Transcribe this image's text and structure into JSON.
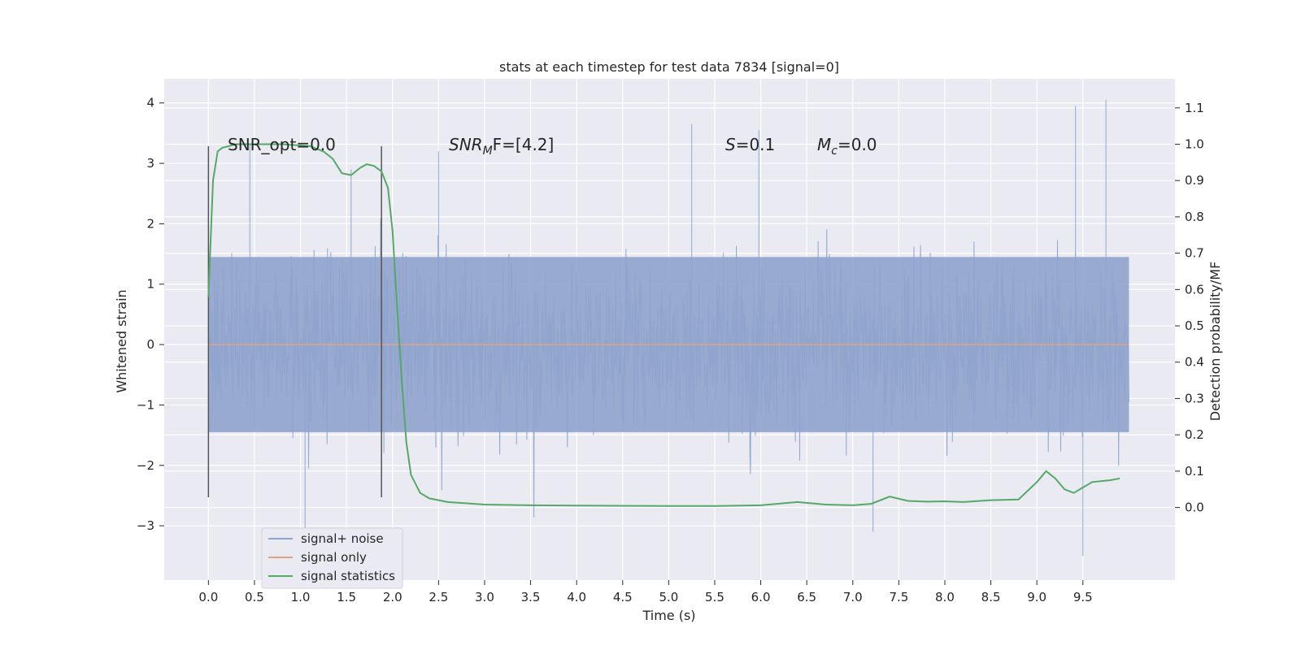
{
  "chart_data": {
    "type": "line",
    "title": "stats at each timestep for test data 7834 [signal=0]",
    "xlabel": "Time (s)",
    "ylabel": "Whitened strain",
    "ylabel_right": "Detection probability/MF",
    "xlim": [
      -0.48,
      10.5
    ],
    "ylim": [
      -3.9,
      4.4
    ],
    "ylim_right": [
      -0.2,
      1.18
    ],
    "xticks": [
      "0.0",
      "0.5",
      "1.0",
      "1.5",
      "2.0",
      "2.5",
      "3.0",
      "3.5",
      "4.0",
      "4.5",
      "5.0",
      "5.5",
      "6.0",
      "6.5",
      "7.0",
      "7.5",
      "8.0",
      "8.5",
      "9.0",
      "9.5"
    ],
    "yticks": [
      "−3",
      "−2",
      "−1",
      "0",
      "1",
      "2",
      "3",
      "4"
    ],
    "yticks_right": [
      "0.0",
      "0.1",
      "0.2",
      "0.3",
      "0.4",
      "0.5",
      "0.6",
      "0.7",
      "0.8",
      "0.9",
      "1.0",
      "1.1"
    ],
    "grid": true,
    "legend_position": "bottom-left",
    "annotations": {
      "snr_opt": "SNR_opt=0.0",
      "snr_mf_prefix": "SNR",
      "snr_mf_sub": "M",
      "snr_mf_suffix": "F=[4.2]",
      "s_var": "S",
      "s_value": "=0.1",
      "mc_var": "M",
      "mc_sub": "c",
      "mc_value": "=0.0"
    },
    "markers_x": [
      0.0,
      1.88
    ],
    "series": [
      {
        "name": "signal+ noise",
        "color": "#8fa3cc",
        "noise_band": {
          "x": [
            0.0,
            10.0
          ],
          "typical_abs": 1.5,
          "peak_max": 4.05,
          "peak_min": -3.5
        }
      },
      {
        "name": "signal only",
        "color": "#e0a084",
        "x": [
          0.0,
          10.0
        ],
        "y": [
          0.0,
          0.0
        ]
      },
      {
        "name": "signal statistics",
        "color": "#55a868",
        "axis": "right",
        "x": [
          0.0,
          0.05,
          0.1,
          0.15,
          0.3,
          0.5,
          0.8,
          1.1,
          1.25,
          1.35,
          1.45,
          1.55,
          1.65,
          1.72,
          1.8,
          1.88,
          1.95,
          2.0,
          2.05,
          2.1,
          2.15,
          2.2,
          2.3,
          2.4,
          2.6,
          3.0,
          3.5,
          4.0,
          5.0,
          5.5,
          6.0,
          6.4,
          6.7,
          7.0,
          7.2,
          7.4,
          7.6,
          7.8,
          8.0,
          8.2,
          8.5,
          8.8,
          9.0,
          9.1,
          9.2,
          9.3,
          9.4,
          9.5,
          9.6,
          9.8,
          9.9
        ],
        "y": [
          0.58,
          0.9,
          0.98,
          0.99,
          1.0,
          1.0,
          1.0,
          0.995,
          0.98,
          0.96,
          0.92,
          0.915,
          0.935,
          0.945,
          0.94,
          0.925,
          0.88,
          0.76,
          0.55,
          0.35,
          0.18,
          0.09,
          0.04,
          0.025,
          0.015,
          0.008,
          0.006,
          0.005,
          0.004,
          0.004,
          0.006,
          0.015,
          0.008,
          0.006,
          0.01,
          0.03,
          0.018,
          0.016,
          0.017,
          0.015,
          0.02,
          0.022,
          0.07,
          0.1,
          0.08,
          0.05,
          0.04,
          0.055,
          0.07,
          0.075,
          0.08
        ]
      }
    ]
  }
}
